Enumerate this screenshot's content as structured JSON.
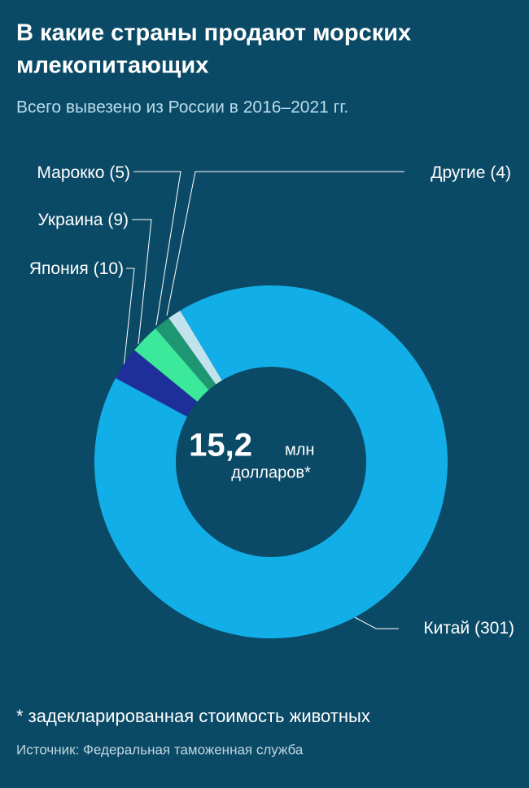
{
  "chart_data": {
    "type": "donut",
    "title": "В какие страны продают морских млекопитающих",
    "title_lines": [
      "В какие страны продают морских",
      "млекопитающих"
    ],
    "subtitle": "Всего вывезено из России в 2016–2021 гг.",
    "categories": [
      "Китай",
      "Япония",
      "Украина",
      "Марокко",
      "Другие"
    ],
    "values": [
      301,
      10,
      9,
      5,
      4
    ],
    "value_labels": [
      "(301)",
      "(10)",
      "(9)",
      "(5)",
      "(4)"
    ],
    "colors": [
      "#12aee8",
      "#1e2f9b",
      "#3ce89a",
      "#1e9672",
      "#c2e3ee"
    ],
    "center_value": "15,2",
    "center_unit": "млн",
    "center_text": "долларов*",
    "footnote": "* задекларированная стоимость животных",
    "source": "Источник: Федеральная таможенная служба"
  }
}
